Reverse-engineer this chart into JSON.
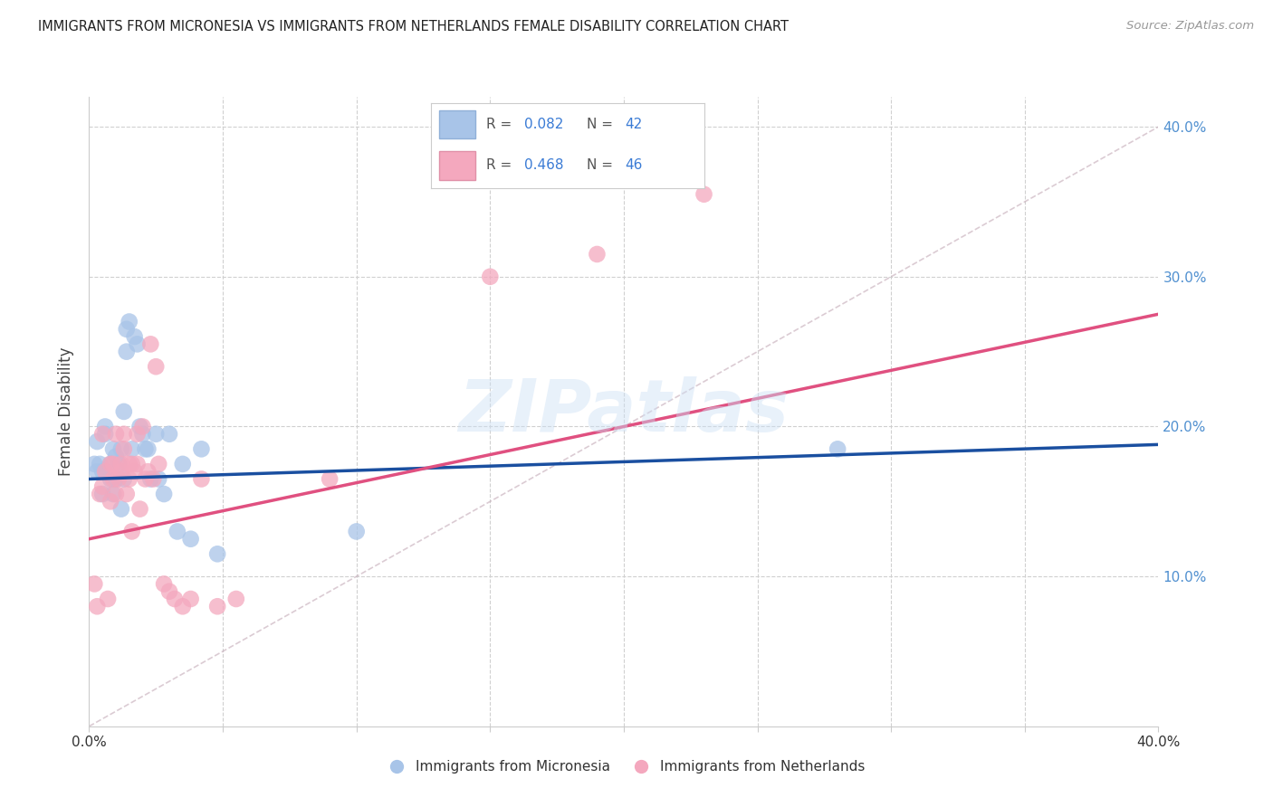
{
  "title": "IMMIGRANTS FROM MICRONESIA VS IMMIGRANTS FROM NETHERLANDS FEMALE DISABILITY CORRELATION CHART",
  "source": "Source: ZipAtlas.com",
  "ylabel": "Female Disability",
  "blue_color": "#a8c4e8",
  "pink_color": "#f4a8be",
  "blue_line_color": "#1a4fa0",
  "pink_line_color": "#e05080",
  "diagonal_line_color": "#c8b0bc",
  "watermark_text": "ZIPatlas",
  "xlim": [
    0.0,
    0.4
  ],
  "ylim": [
    0.0,
    0.42
  ],
  "blue_r": "0.082",
  "blue_n": "42",
  "pink_r": "0.468",
  "pink_n": "46",
  "blue_line_y0": 0.165,
  "blue_line_y1": 0.188,
  "pink_line_y0": 0.125,
  "pink_line_y1": 0.275,
  "micronesia_x": [
    0.002,
    0.003,
    0.003,
    0.004,
    0.005,
    0.005,
    0.006,
    0.006,
    0.007,
    0.008,
    0.008,
    0.009,
    0.009,
    0.01,
    0.01,
    0.011,
    0.012,
    0.012,
    0.013,
    0.013,
    0.014,
    0.014,
    0.015,
    0.016,
    0.017,
    0.018,
    0.019,
    0.02,
    0.021,
    0.022,
    0.023,
    0.025,
    0.026,
    0.028,
    0.03,
    0.033,
    0.035,
    0.038,
    0.042,
    0.048,
    0.1,
    0.28
  ],
  "micronesia_y": [
    0.175,
    0.17,
    0.19,
    0.175,
    0.17,
    0.155,
    0.2,
    0.195,
    0.17,
    0.165,
    0.175,
    0.185,
    0.155,
    0.165,
    0.18,
    0.175,
    0.145,
    0.185,
    0.21,
    0.165,
    0.265,
    0.25,
    0.27,
    0.185,
    0.26,
    0.255,
    0.2,
    0.195,
    0.185,
    0.185,
    0.165,
    0.195,
    0.165,
    0.155,
    0.195,
    0.13,
    0.175,
    0.125,
    0.185,
    0.115,
    0.13,
    0.185
  ],
  "netherlands_x": [
    0.002,
    0.003,
    0.004,
    0.005,
    0.005,
    0.006,
    0.007,
    0.008,
    0.008,
    0.009,
    0.009,
    0.01,
    0.01,
    0.011,
    0.012,
    0.012,
    0.013,
    0.013,
    0.014,
    0.015,
    0.015,
    0.016,
    0.016,
    0.017,
    0.018,
    0.018,
    0.019,
    0.02,
    0.021,
    0.022,
    0.023,
    0.024,
    0.025,
    0.026,
    0.028,
    0.03,
    0.032,
    0.035,
    0.038,
    0.042,
    0.048,
    0.055,
    0.09,
    0.15,
    0.19,
    0.23
  ],
  "netherlands_y": [
    0.095,
    0.08,
    0.155,
    0.16,
    0.195,
    0.17,
    0.085,
    0.15,
    0.175,
    0.165,
    0.175,
    0.155,
    0.195,
    0.165,
    0.17,
    0.175,
    0.185,
    0.195,
    0.155,
    0.175,
    0.165,
    0.13,
    0.175,
    0.17,
    0.195,
    0.175,
    0.145,
    0.2,
    0.165,
    0.17,
    0.255,
    0.165,
    0.24,
    0.175,
    0.095,
    0.09,
    0.085,
    0.08,
    0.085,
    0.165,
    0.08,
    0.085,
    0.165,
    0.3,
    0.315,
    0.355
  ]
}
